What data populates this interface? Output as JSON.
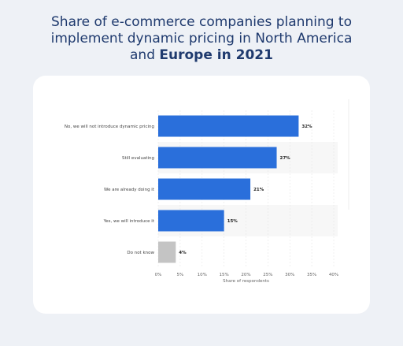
{
  "title": {
    "line1": "Share of e-commerce companies planning to",
    "line2": "implement dynamic pricing in North America",
    "line3_regular": "and ",
    "line3_bold": "Europe in 2021"
  },
  "chart_data": {
    "type": "bar",
    "orientation": "horizontal",
    "categories": [
      "No, we will not introduce dynamic pricing",
      "Still evaluating",
      "We are already doing it",
      "Yes, we will introduce it",
      "Do not know"
    ],
    "values": [
      32,
      27,
      21,
      15,
      4
    ],
    "value_labels": [
      "32%",
      "27%",
      "21%",
      "15%",
      "4%"
    ],
    "bar_colors": [
      "#2a6fdb",
      "#2a6fdb",
      "#2a6fdb",
      "#2a6fdb",
      "#c4c4c4"
    ],
    "xlabel": "Share of respondents",
    "xlim": [
      0,
      40
    ],
    "xticks": [
      0,
      5,
      10,
      15,
      20,
      25,
      30,
      35,
      40
    ],
    "xtick_labels": [
      "0%",
      "5%",
      "10%",
      "15%",
      "20%",
      "25%",
      "30%",
      "35%",
      "40%"
    ],
    "grid": true,
    "legend": "none"
  }
}
